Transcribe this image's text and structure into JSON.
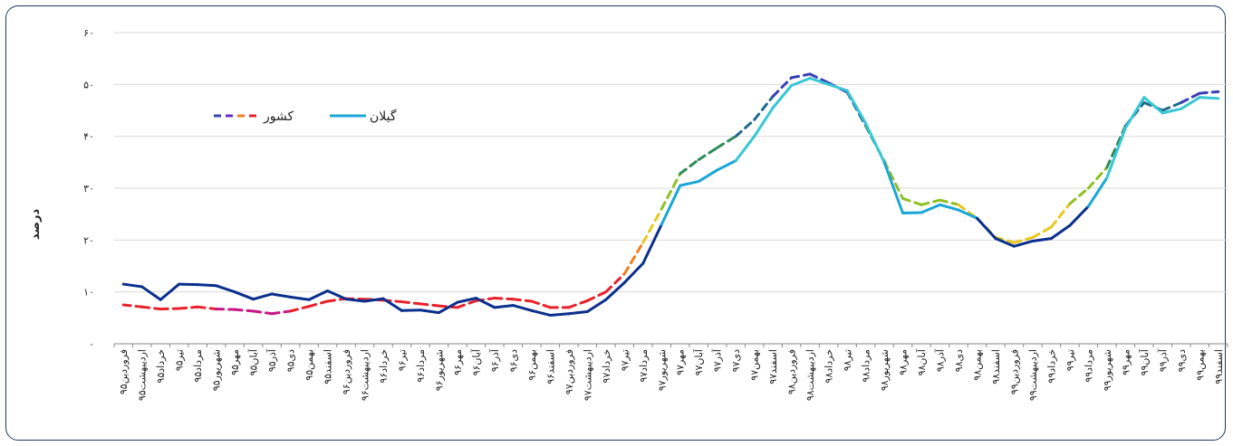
{
  "chart_data": {
    "type": "line",
    "ylabel": "درصد",
    "ylim": [
      0,
      60
    ],
    "yticks": [
      {
        "value": 0,
        "label": "۰"
      },
      {
        "value": 10,
        "label": "۱۰"
      },
      {
        "value": 20,
        "label": "۲۰"
      },
      {
        "value": 30,
        "label": "۳۰"
      },
      {
        "value": 40,
        "label": "۴۰"
      },
      {
        "value": 50,
        "label": "۵۰"
      },
      {
        "value": 60,
        "label": "۶۰"
      }
    ],
    "grid": true,
    "legend_position": "top-left",
    "categories": [
      "فروردین۹۵",
      "اردیبهشت۹۵",
      "خرداد۹۵",
      "تیر۹۵",
      "مرداد۹۵",
      "شهریور۹۵",
      "مهر۹۵",
      "آبان۹۵",
      "آذر۹۵",
      "دی۹۵",
      "بهمن۹۵",
      "اسفند۹۵",
      "فروردین۹۶",
      "اردیبهشت۹۶",
      "خرداد۹۶",
      "تیر۹۶",
      "مرداد۹۶",
      "شهریور۹۶",
      "مهر۹۶",
      "آبان۹۶",
      "آذر۹۶",
      "دی۹۶",
      "بهمن۹۶",
      "اسفند۹۶",
      "فروردین۹۷",
      "اردیبهشت۹۷",
      "خرداد۹۷",
      "تیر۹۷",
      "مرداد۹۷",
      "شهریور۹۷",
      "مهر۹۷",
      "آبان۹۷",
      "آذر۹۷",
      "دی۹۷",
      "بهمن۹۷",
      "اسفند۹۷",
      "فروردین۹۸",
      "اردیبهشت۹۸",
      "خرداد۹۸",
      "تیر۹۸",
      "مرداد۹۸",
      "شهریور۹۸",
      "مهر۹۸",
      "آبان۹۸",
      "آذر۹۸",
      "دی۹۸",
      "بهمن۹۸",
      "اسفند۹۸",
      "فروردین۹۹",
      "اردیبهشت۹۹",
      "خرداد۹۹",
      "تیر۹۹",
      "مرداد۹۹",
      "شهریور۹۹",
      "مهر۹۹",
      "آبان۹۹",
      "آذر۹۹",
      "دی۹۹",
      "بهمن۹۹",
      "اسفند۹۹"
    ],
    "series": [
      {
        "name": "کشور",
        "style": "dashed",
        "colors": [
          "#c71585",
          "#e8212b",
          "#f07f1f",
          "#e6c81e",
          "#8fbf26",
          "#2e8b57",
          "#1f6a8c",
          "#3a40b5",
          "#6a2bc6"
        ],
        "values": [
          7.5,
          7.1,
          6.7,
          6.8,
          7.1,
          6.7,
          6.6,
          6.3,
          5.8,
          6.3,
          7.2,
          8.2,
          8.7,
          8.6,
          8.4,
          8.1,
          7.7,
          7.3,
          7.0,
          8.3,
          8.8,
          8.6,
          8.2,
          7.0,
          7.0,
          8.3,
          10.0,
          13.5,
          19.5,
          26.0,
          32.8,
          35.5,
          37.8,
          40.0,
          43.2,
          47.7,
          51.3,
          52.0,
          50.3,
          48.5,
          42.0,
          35.2,
          28.0,
          26.8,
          27.7,
          26.8,
          24.2,
          20.5,
          19.5,
          20.5,
          22.5,
          27.0,
          30.0,
          34.0,
          42.0,
          46.5,
          45.0,
          46.5,
          48.3,
          48.6
        ]
      },
      {
        "name": "گیلان",
        "style": "solid",
        "colors": [
          "#0a2f8c",
          "#1aa6d6",
          "#38c7d4"
        ],
        "values": [
          11.5,
          11.0,
          8.5,
          11.5,
          11.4,
          11.2,
          10.0,
          8.6,
          9.6,
          9.0,
          8.5,
          10.2,
          8.6,
          8.2,
          8.7,
          6.4,
          6.5,
          6.0,
          8.0,
          8.8,
          7.0,
          7.4,
          6.4,
          5.5,
          5.8,
          6.2,
          8.5,
          11.8,
          15.5,
          23.0,
          30.5,
          31.3,
          33.5,
          35.3,
          40.0,
          45.5,
          49.8,
          51.2,
          50.0,
          48.8,
          42.5,
          35.0,
          25.2,
          25.3,
          26.8,
          25.8,
          24.2,
          20.3,
          18.8,
          19.8,
          20.3,
          22.8,
          26.5,
          32.0,
          41.6,
          47.5,
          44.5,
          45.3,
          47.5,
          47.3
        ]
      }
    ]
  }
}
